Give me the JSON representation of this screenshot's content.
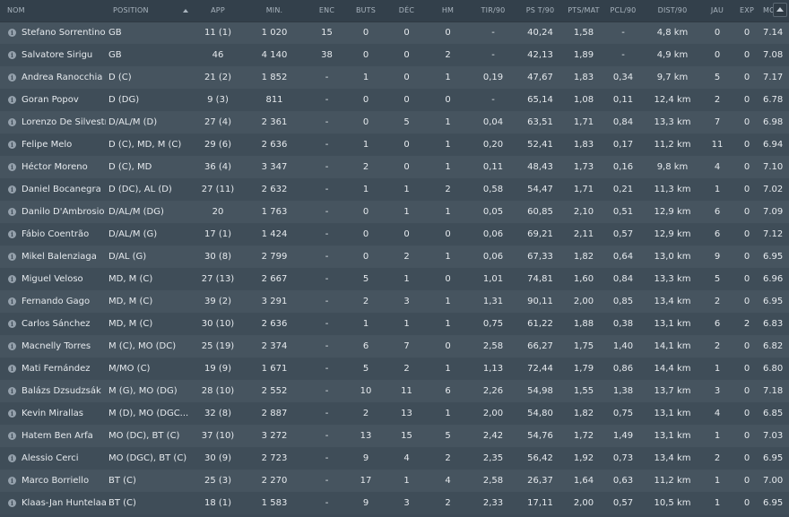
{
  "header": {
    "nom": "NOM",
    "position": "POSITION",
    "app": "APP",
    "min": "MIN.",
    "enc": "ENC",
    "buts": "BUTS",
    "dec": "DÉC",
    "hm": "HM",
    "tir90": "TIR/90",
    "pst90": "PS T/90",
    "ptsmat": "PTS/MAT",
    "pcl90": "PCL/90",
    "dist90": "DIST/90",
    "jau": "JAU",
    "exp": "EXP",
    "moy": "MOY"
  },
  "icons": {
    "info": "info-icon",
    "sort": "sort-ascending-icon",
    "scroll": "scroll-up-icon"
  },
  "players": [
    [
      "Stefano Sorrentino",
      "GB",
      "11 (1)",
      "1 020",
      "15",
      "0",
      "0",
      "0",
      "-",
      "40,24",
      "1,58",
      "-",
      "4,8 km",
      "0",
      "0",
      "7.14"
    ],
    [
      "Salvatore Sirigu",
      "GB",
      "46",
      "4 140",
      "38",
      "0",
      "0",
      "2",
      "-",
      "42,13",
      "1,89",
      "-",
      "4,9 km",
      "0",
      "0",
      "7.08"
    ],
    [
      "Andrea Ranocchia",
      "D (C)",
      "21 (2)",
      "1 852",
      "-",
      "1",
      "0",
      "1",
      "0,19",
      "47,67",
      "1,83",
      "0,34",
      "9,7 km",
      "5",
      "0",
      "7.17"
    ],
    [
      "Goran Popov",
      "D (DG)",
      "9 (3)",
      "811",
      "-",
      "0",
      "0",
      "0",
      "-",
      "65,14",
      "1,08",
      "0,11",
      "12,4 km",
      "2",
      "0",
      "6.78"
    ],
    [
      "Lorenzo De Silvestri",
      "D/AL/M (D)",
      "27 (4)",
      "2 361",
      "-",
      "0",
      "5",
      "1",
      "0,04",
      "63,51",
      "1,71",
      "0,84",
      "13,3 km",
      "7",
      "0",
      "6.98"
    ],
    [
      "Felipe Melo",
      "D (C), MD, M (C)",
      "29 (6)",
      "2 636",
      "-",
      "1",
      "0",
      "1",
      "0,20",
      "52,41",
      "1,83",
      "0,17",
      "11,2 km",
      "11",
      "0",
      "6.94"
    ],
    [
      "Héctor Moreno",
      "D (C), MD",
      "36 (4)",
      "3 347",
      "-",
      "2",
      "0",
      "1",
      "0,11",
      "48,43",
      "1,73",
      "0,16",
      "9,8 km",
      "4",
      "0",
      "7.10"
    ],
    [
      "Daniel Bocanegra",
      "D (DC), AL (D)",
      "27 (11)",
      "2 632",
      "-",
      "1",
      "1",
      "2",
      "0,58",
      "54,47",
      "1,71",
      "0,21",
      "11,3 km",
      "1",
      "0",
      "7.02"
    ],
    [
      "Danilo D'Ambrosio",
      "D/AL/M (DG)",
      "20",
      "1 763",
      "-",
      "0",
      "1",
      "1",
      "0,05",
      "60,85",
      "2,10",
      "0,51",
      "12,9 km",
      "6",
      "0",
      "7.09"
    ],
    [
      "Fábio Coentrão",
      "D/AL/M (G)",
      "17 (1)",
      "1 424",
      "-",
      "0",
      "0",
      "0",
      "0,06",
      "69,21",
      "2,11",
      "0,57",
      "12,9 km",
      "6",
      "0",
      "7.12"
    ],
    [
      "Mikel Balenziaga",
      "D/AL (G)",
      "30 (8)",
      "2 799",
      "-",
      "0",
      "2",
      "1",
      "0,06",
      "67,33",
      "1,82",
      "0,64",
      "13,0 km",
      "9",
      "0",
      "6.95"
    ],
    [
      "Miguel Veloso",
      "MD, M (C)",
      "27 (13)",
      "2 667",
      "-",
      "5",
      "1",
      "0",
      "1,01",
      "74,81",
      "1,60",
      "0,84",
      "13,3 km",
      "5",
      "0",
      "6.96"
    ],
    [
      "Fernando Gago",
      "MD, M (C)",
      "39 (2)",
      "3 291",
      "-",
      "2",
      "3",
      "1",
      "1,31",
      "90,11",
      "2,00",
      "0,85",
      "13,4 km",
      "2",
      "0",
      "6.95"
    ],
    [
      "Carlos Sánchez",
      "MD, M (C)",
      "30 (10)",
      "2 636",
      "-",
      "1",
      "1",
      "1",
      "0,75",
      "61,22",
      "1,88",
      "0,38",
      "13,1 km",
      "6",
      "2",
      "6.83"
    ],
    [
      "Macnelly Torres",
      "M (C), MO (DC)",
      "25 (19)",
      "2 374",
      "-",
      "6",
      "7",
      "0",
      "2,58",
      "66,27",
      "1,75",
      "1,40",
      "14,1 km",
      "2",
      "0",
      "6.82"
    ],
    [
      "Mati Fernández",
      "M/MO (C)",
      "19 (9)",
      "1 671",
      "-",
      "5",
      "2",
      "1",
      "1,13",
      "72,44",
      "1,79",
      "0,86",
      "14,4 km",
      "1",
      "0",
      "6.80"
    ],
    [
      "Balázs Dzsudzsák",
      "M (G), MO (DG)",
      "28 (10)",
      "2 552",
      "-",
      "10",
      "11",
      "6",
      "2,26",
      "54,98",
      "1,55",
      "1,38",
      "13,7 km",
      "3",
      "0",
      "7.18"
    ],
    [
      "Kevin Mirallas",
      "M (D), MO (DGC...",
      "32 (8)",
      "2 887",
      "-",
      "2",
      "13",
      "1",
      "2,00",
      "54,80",
      "1,82",
      "0,75",
      "13,1 km",
      "4",
      "0",
      "6.85"
    ],
    [
      "Hatem Ben Arfa",
      "MO (DC), BT (C)",
      "37 (10)",
      "3 272",
      "-",
      "13",
      "15",
      "5",
      "2,42",
      "54,76",
      "1,72",
      "1,49",
      "13,1 km",
      "1",
      "0",
      "7.03"
    ],
    [
      "Alessio Cerci",
      "MO (DGC), BT (C)",
      "30 (9)",
      "2 723",
      "-",
      "9",
      "4",
      "2",
      "2,35",
      "56,42",
      "1,92",
      "0,73",
      "13,4 km",
      "2",
      "0",
      "6.95"
    ],
    [
      "Marco Borriello",
      "BT (C)",
      "25 (3)",
      "2 270",
      "-",
      "17",
      "1",
      "4",
      "2,58",
      "26,37",
      "1,64",
      "0,63",
      "11,2 km",
      "1",
      "0",
      "7.00"
    ],
    [
      "Klaas-Jan Huntelaar",
      "BT (C)",
      "18 (1)",
      "1 583",
      "-",
      "9",
      "3",
      "2",
      "2,33",
      "17,11",
      "2,00",
      "0,57",
      "10,5 km",
      "1",
      "0",
      "6.95"
    ]
  ]
}
